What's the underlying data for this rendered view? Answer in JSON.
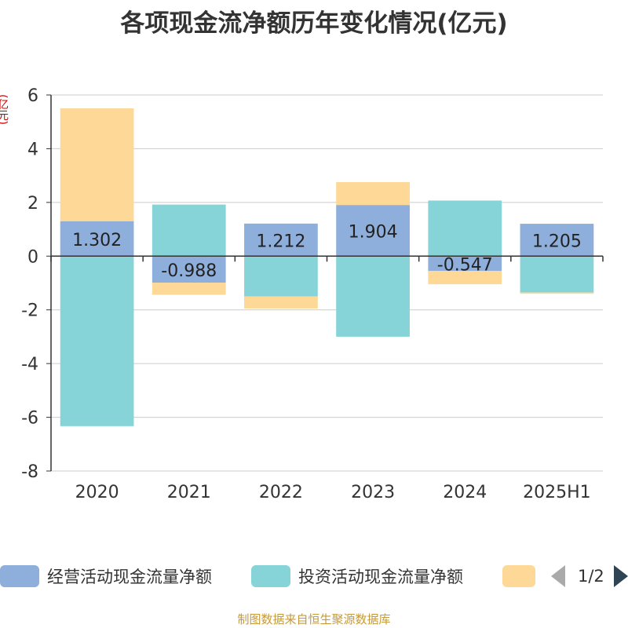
{
  "chart_data": {
    "type": "bar",
    "stacked": true,
    "title": "各项现金流净额历年变化情况(亿元)",
    "ylabel": "(亿元)",
    "xlabel": "",
    "categories": [
      "2020",
      "2021",
      "2022",
      "2023",
      "2024",
      "2025H1"
    ],
    "ylim": [
      -8,
      6
    ],
    "yticks": [
      6,
      4,
      2,
      0,
      -2,
      -4,
      -6,
      -8
    ],
    "grid": true,
    "legend_position": "bottom",
    "series": [
      {
        "name": "经营活动现金流量净额",
        "color": "#8eaedb",
        "values": [
          1.302,
          -0.988,
          1.212,
          1.904,
          -0.547,
          1.205
        ],
        "data_labels": [
          "1.302",
          "-0.988",
          "1.212",
          "1.904",
          "-0.547",
          "1.205"
        ]
      },
      {
        "name": "投资活动现金流量净额",
        "color": "#86d4d8",
        "values": [
          -6.33,
          1.92,
          -1.5,
          -3.0,
          2.07,
          -1.35
        ]
      },
      {
        "name": "",
        "color": "#fdd896",
        "values": [
          4.2,
          -0.45,
          -0.45,
          0.85,
          -0.5,
          -0.05
        ]
      }
    ]
  },
  "legend": {
    "item1": "经营活动现金流量净额",
    "item2": "投资活动现金流量净额",
    "page_indicator": "1/2"
  },
  "footer": {
    "source": "制图数据来自恒生聚源数据库"
  }
}
